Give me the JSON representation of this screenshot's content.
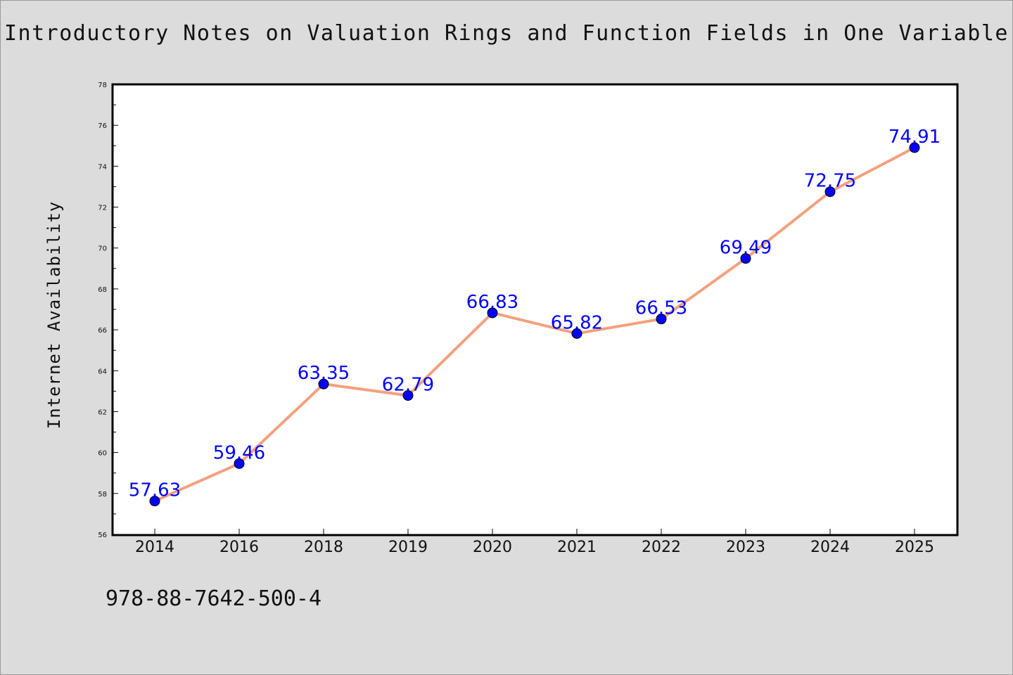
{
  "chart_data": {
    "type": "line",
    "title": "Introductory Notes on Valuation Rings and Function Fields in One Variable",
    "xlabel": "",
    "ylabel": "Internet Availability",
    "categories": [
      "2014",
      "2016",
      "2018",
      "2019",
      "2020",
      "2021",
      "2022",
      "2023",
      "2024",
      "2025"
    ],
    "values": [
      57.63,
      59.46,
      63.35,
      62.79,
      66.83,
      65.82,
      66.53,
      69.49,
      72.75,
      74.91
    ],
    "value_labels": [
      "57.63",
      "59.46",
      "63.35",
      "62.79",
      "66.83",
      "65.82",
      "66.53",
      "69.49",
      "72.75",
      "74.91"
    ],
    "ylim": [
      56,
      78
    ],
    "yticks": [
      "56",
      "58",
      "60",
      "62",
      "64",
      "66",
      "68",
      "70",
      "72",
      "74",
      "76",
      "78"
    ],
    "grid": false,
    "legend": "none",
    "line_color": "#f4a07e",
    "marker_color": "#0000ff",
    "label_color": "#0000ff"
  },
  "footer": {
    "isbn": "978-88-7642-500-4"
  }
}
